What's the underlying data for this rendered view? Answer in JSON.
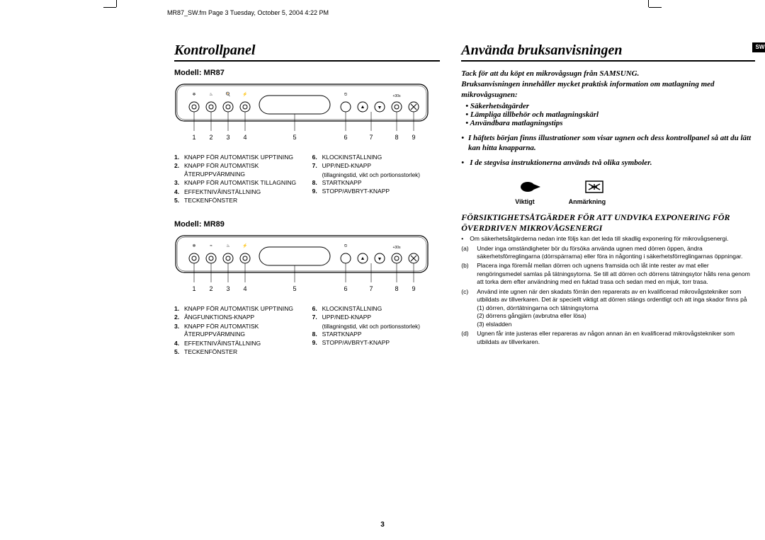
{
  "header": "MR87_SW.fm  Page 3  Tuesday, October 5, 2004   4:22 PM",
  "page_number": "3",
  "sw_tab": "SW",
  "left": {
    "title": "Kontrollpanel",
    "models": [
      {
        "name": "Modell: MR87",
        "button_numbers": [
          "1",
          "2",
          "3",
          "4",
          "5",
          "6",
          "7",
          "8",
          "9"
        ],
        "legend_left": [
          {
            "n": "1.",
            "t": "KNAPP FÖR AUTOMATISK UPPTINING"
          },
          {
            "n": "2.",
            "t": "KNAPP FÖR AUTOMATISK ÅTERUPPVÄRMNING"
          },
          {
            "n": "3.",
            "t": "KNAPP FÖR AUTOMATISK TILLAGNING"
          },
          {
            "n": "4.",
            "t": "EFFEKTNIVÅINSTÄLLNING"
          },
          {
            "n": "5.",
            "t": "TECKENFÖNSTER"
          }
        ],
        "legend_right": [
          {
            "n": "6.",
            "t": "KLOCKINSTÄLLNING"
          },
          {
            "n": "7.",
            "t": "UPP/NED-KNAPP",
            "sub": "(tillagningstid, vikt och portionsstorlek)"
          },
          {
            "n": "8.",
            "t": "STARTKNAPP"
          },
          {
            "n": "9.",
            "t": "STOPP/AVBRYT-KNAPP"
          }
        ]
      },
      {
        "name": "Modell: MR89",
        "button_numbers": [
          "1",
          "2",
          "3",
          "4",
          "5",
          "6",
          "7",
          "8",
          "9"
        ],
        "legend_left": [
          {
            "n": "1.",
            "t": "KNAPP FÖR AUTOMATISK UPPTINING"
          },
          {
            "n": "2.",
            "t": "ÅNGFUNKTIONS-KNAPP"
          },
          {
            "n": "3.",
            "t": "KNAPP FÖR AUTOMATISK ÅTERUPPVÄRMNING"
          },
          {
            "n": "4.",
            "t": "EFFEKTNIVÅINSTÄLLNING"
          },
          {
            "n": "5.",
            "t": "TECKENFÖNSTER"
          }
        ],
        "legend_right": [
          {
            "n": "6.",
            "t": "KLOCKINSTÄLLNING"
          },
          {
            "n": "7.",
            "t": "UPP/NED-KNAPP",
            "sub": "(tillagningstid, vikt och portionsstorlek)"
          },
          {
            "n": "8.",
            "t": "STARTKNAPP"
          },
          {
            "n": "9.",
            "t": "STOPP/AVBRYT-KNAPP"
          }
        ]
      }
    ]
  },
  "right": {
    "title": "Använda bruksanvisningen",
    "intro1": "Tack för att du köpt en mikrovågsugn från SAMSUNG.",
    "intro2": "Bruksanvisningen innehåller mycket praktisk information om matlagning med mikrovågsugnen:",
    "bullets": [
      "Säkerhetsåtgärder",
      "Lämpliga tillbehör och matlagningskärl",
      "Användbara matlagningstips"
    ],
    "para1": "I häftets början finns illustrationer som visar ugnen och dess kontrollpanel så att du lätt kan hitta knapparna.",
    "para2": "I de stegvisa instruktionerna används två olika symboler.",
    "symbol_labels": {
      "a": "Viktigt",
      "b": "Anmärkning"
    },
    "warn_title": "FÖRSIKTIGHETSÅTGÄRDER FÖR ATT UNDVIKA EXPONERING FÖR ÖVERDRIVEN MIKROVÅGSENERGI",
    "warn_intro": "Om säkerhetsåtgärderna nedan inte följs kan det leda till skadlig exponering för mikrovågsenergi.",
    "warn_items": [
      {
        "lab": "(a)",
        "txt": "Under inga omständigheter bör du försöka använda ugnen med dörren öppen, ändra säkerhetsförreglingarna (dörrspärrarna) eller föra in någonting i säkerhetsförreglingarnas öppningar."
      },
      {
        "lab": "(b)",
        "txt": "Placera inga föremål mellan dörren och ugnens framsida och låt inte rester av mat eller rengöringsmedel samlas på tätningsytorna. Se till att dörren och dörrens tätningsytor hålls rena genom att torka dem efter användning med en fuktad trasa och sedan med en mjuk, torr trasa."
      },
      {
        "lab": "(c)",
        "txt": "Använd inte ugnen när den skadats förrän den reparerats av en kvalificerad mikrovågstekniker som utbildats av tillverkaren. Det är speciellt viktigt att dörren stängs ordentligt och att inga skador finns på",
        "subs": [
          "(1) dörren, dörrtätningarna och tätningsytorna",
          "(2) dörrens gångjärn (avbrutna eller lösa)",
          "(3) elsladden"
        ]
      },
      {
        "lab": "(d)",
        "txt": "Ugnen får inte justeras eller repareras av någon annan än en kvalificerad mikrovågstekniker som utbildats av tillverkaren."
      }
    ]
  },
  "panel_style": {
    "outline": "#000",
    "fill": "#fff",
    "number_font_size": 9
  }
}
